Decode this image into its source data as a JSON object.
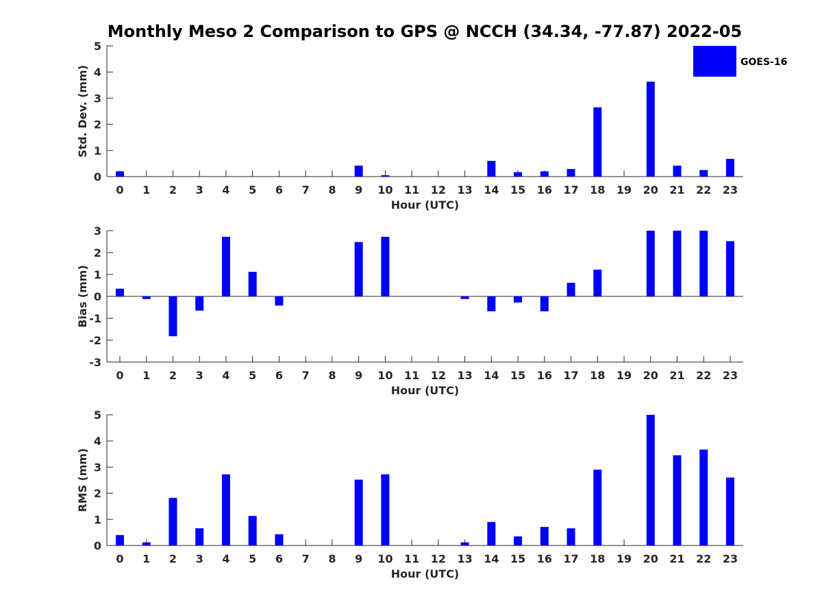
{
  "figure": {
    "title": "Monthly Meso 2 Comparison to GPS @ NCCH (34.34, -77.87) 2022-05"
  },
  "legend": {
    "label": "GOES-16",
    "color": "#0000ff",
    "placement": "top-right"
  },
  "chart_data": [
    {
      "type": "bar",
      "title": "Monthly Meso 2 Comparison to GPS @ NCCH (34.34, -77.87) 2022-05",
      "xlabel": "Hour (UTC)",
      "ylabel": "Std. Dev. (mm)",
      "ylim": [
        0,
        5
      ],
      "yticks": [
        "0",
        "1",
        "2",
        "3",
        "4",
        "5"
      ],
      "categories": [
        "0",
        "1",
        "2",
        "3",
        "4",
        "5",
        "6",
        "7",
        "8",
        "9",
        "10",
        "11",
        "12",
        "13",
        "14",
        "15",
        "16",
        "17",
        "18",
        "19",
        "20",
        "21",
        "22",
        "23"
      ],
      "series": [
        {
          "name": "GOES-16",
          "color": "#0000ff",
          "values": [
            0.2,
            null,
            null,
            null,
            null,
            null,
            null,
            null,
            null,
            0.42,
            0.05,
            null,
            null,
            null,
            0.6,
            0.17,
            0.2,
            0.29,
            2.65,
            null,
            3.63,
            0.42,
            0.25,
            0.68
          ]
        }
      ],
      "grid": false,
      "legend": "top-right"
    },
    {
      "type": "bar",
      "xlabel": "Hour (UTC)",
      "ylabel": "Bias (mm)",
      "ylim": [
        -3,
        3
      ],
      "yticks": [
        "-3",
        "-2",
        "-1",
        "0",
        "1",
        "2",
        "3"
      ],
      "categories": [
        "0",
        "1",
        "2",
        "3",
        "4",
        "5",
        "6",
        "7",
        "8",
        "9",
        "10",
        "11",
        "12",
        "13",
        "14",
        "15",
        "16",
        "17",
        "18",
        "19",
        "20",
        "21",
        "22",
        "23"
      ],
      "series": [
        {
          "name": "GOES-16",
          "color": "#0000ff",
          "values": [
            0.35,
            -0.12,
            -1.82,
            -0.65,
            2.72,
            1.12,
            -0.42,
            null,
            null,
            2.48,
            2.72,
            null,
            null,
            -0.12,
            -0.68,
            -0.28,
            -0.68,
            0.62,
            1.22,
            null,
            3.0,
            3.0,
            3.0,
            2.52
          ]
        }
      ],
      "grid": false
    },
    {
      "type": "bar",
      "xlabel": "Hour (UTC)",
      "ylabel": "RMS (mm)",
      "ylim": [
        0,
        5
      ],
      "yticks": [
        "0",
        "1",
        "2",
        "3",
        "4",
        "5"
      ],
      "categories": [
        "0",
        "1",
        "2",
        "3",
        "4",
        "5",
        "6",
        "7",
        "8",
        "9",
        "10",
        "11",
        "12",
        "13",
        "14",
        "15",
        "16",
        "17",
        "18",
        "19",
        "20",
        "21",
        "22",
        "23"
      ],
      "series": [
        {
          "name": "GOES-16",
          "color": "#0000ff",
          "values": [
            0.4,
            0.12,
            1.82,
            0.66,
            2.72,
            1.13,
            0.43,
            null,
            null,
            2.52,
            2.72,
            null,
            null,
            0.12,
            0.9,
            0.35,
            0.71,
            0.66,
            2.9,
            null,
            5.0,
            3.45,
            3.67,
            2.6
          ]
        }
      ],
      "grid": false
    }
  ]
}
